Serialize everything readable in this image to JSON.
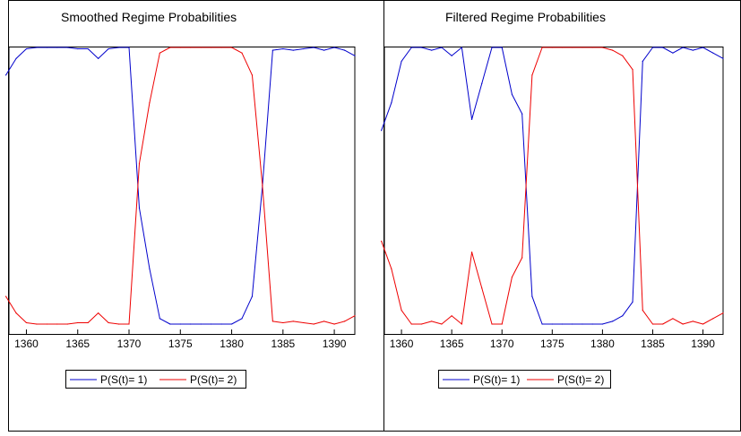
{
  "chart_data": [
    {
      "type": "line",
      "title": "Smoothed Regime Probabilities",
      "xlabel": "",
      "ylabel": "",
      "xlim": [
        1358.3,
        1392
      ],
      "ylim": [
        0,
        1
      ],
      "xticks": [
        "1360",
        "1365",
        "1370",
        "1375",
        "1380",
        "1385",
        "1390"
      ],
      "grid": false,
      "legend": "bottom",
      "x": [
        1358,
        1359,
        1360,
        1361,
        1362,
        1363,
        1364,
        1365,
        1366,
        1367,
        1368,
        1369,
        1370,
        1371,
        1372,
        1373,
        1374,
        1375,
        1376,
        1377,
        1378,
        1379,
        1380,
        1381,
        1382,
        1383,
        1384,
        1385,
        1386,
        1387,
        1388,
        1389,
        1390,
        1391,
        1392
      ],
      "series": [
        {
          "name": "P(S(t)= 1)",
          "color": "#0000cc",
          "values": [
            0.9,
            0.96,
            0.995,
            1.0,
            1.0,
            1.0,
            1.0,
            0.995,
            0.995,
            0.96,
            0.995,
            1.0,
            1.0,
            0.42,
            0.2,
            0.02,
            0.0,
            0.0,
            0.0,
            0.0,
            0.0,
            0.0,
            0.0,
            0.02,
            0.1,
            0.5,
            0.99,
            0.995,
            0.99,
            0.995,
            1.0,
            0.99,
            1.0,
            0.99,
            0.97
          ]
        },
        {
          "name": "P(S(t)= 2)",
          "color": "#ee0000",
          "values": [
            0.1,
            0.04,
            0.005,
            0.0,
            0.0,
            0.0,
            0.0,
            0.005,
            0.005,
            0.04,
            0.005,
            0.0,
            0.0,
            0.58,
            0.8,
            0.98,
            1.0,
            1.0,
            1.0,
            1.0,
            1.0,
            1.0,
            1.0,
            0.98,
            0.9,
            0.5,
            0.01,
            0.005,
            0.01,
            0.005,
            0.0,
            0.01,
            0.0,
            0.01,
            0.03
          ]
        }
      ]
    },
    {
      "type": "line",
      "title": "Filtered Regime Probabilities",
      "xlabel": "",
      "ylabel": "",
      "xlim": [
        1358.3,
        1392
      ],
      "ylim": [
        0,
        1
      ],
      "xticks": [
        "1360",
        "1365",
        "1370",
        "1375",
        "1380",
        "1385",
        "1390"
      ],
      "grid": false,
      "legend": "bottom",
      "x": [
        1358,
        1359,
        1360,
        1361,
        1362,
        1363,
        1364,
        1365,
        1366,
        1367,
        1368,
        1369,
        1370,
        1371,
        1372,
        1373,
        1374,
        1375,
        1376,
        1377,
        1378,
        1379,
        1380,
        1381,
        1382,
        1383,
        1384,
        1385,
        1386,
        1387,
        1388,
        1389,
        1390,
        1391,
        1392
      ],
      "series": [
        {
          "name": "P(S(t)= 1)",
          "color": "#0000cc",
          "values": [
            0.7,
            0.8,
            0.95,
            1.0,
            1.0,
            0.99,
            1.0,
            0.97,
            1.0,
            0.74,
            0.87,
            1.0,
            1.0,
            0.83,
            0.76,
            0.1,
            0.0,
            0.0,
            0.0,
            0.0,
            0.0,
            0.0,
            0.0,
            0.01,
            0.03,
            0.08,
            0.95,
            1.0,
            1.0,
            0.98,
            1.0,
            0.99,
            1.0,
            0.98,
            0.96
          ]
        },
        {
          "name": "P(S(t)= 2)",
          "color": "#ee0000",
          "values": [
            0.3,
            0.2,
            0.05,
            0.0,
            0.0,
            0.01,
            0.0,
            0.03,
            0.0,
            0.26,
            0.13,
            0.0,
            0.0,
            0.17,
            0.24,
            0.9,
            1.0,
            1.0,
            1.0,
            1.0,
            1.0,
            1.0,
            1.0,
            0.99,
            0.97,
            0.92,
            0.05,
            0.0,
            0.0,
            0.02,
            0.0,
            0.01,
            0.0,
            0.02,
            0.04
          ]
        }
      ]
    }
  ]
}
